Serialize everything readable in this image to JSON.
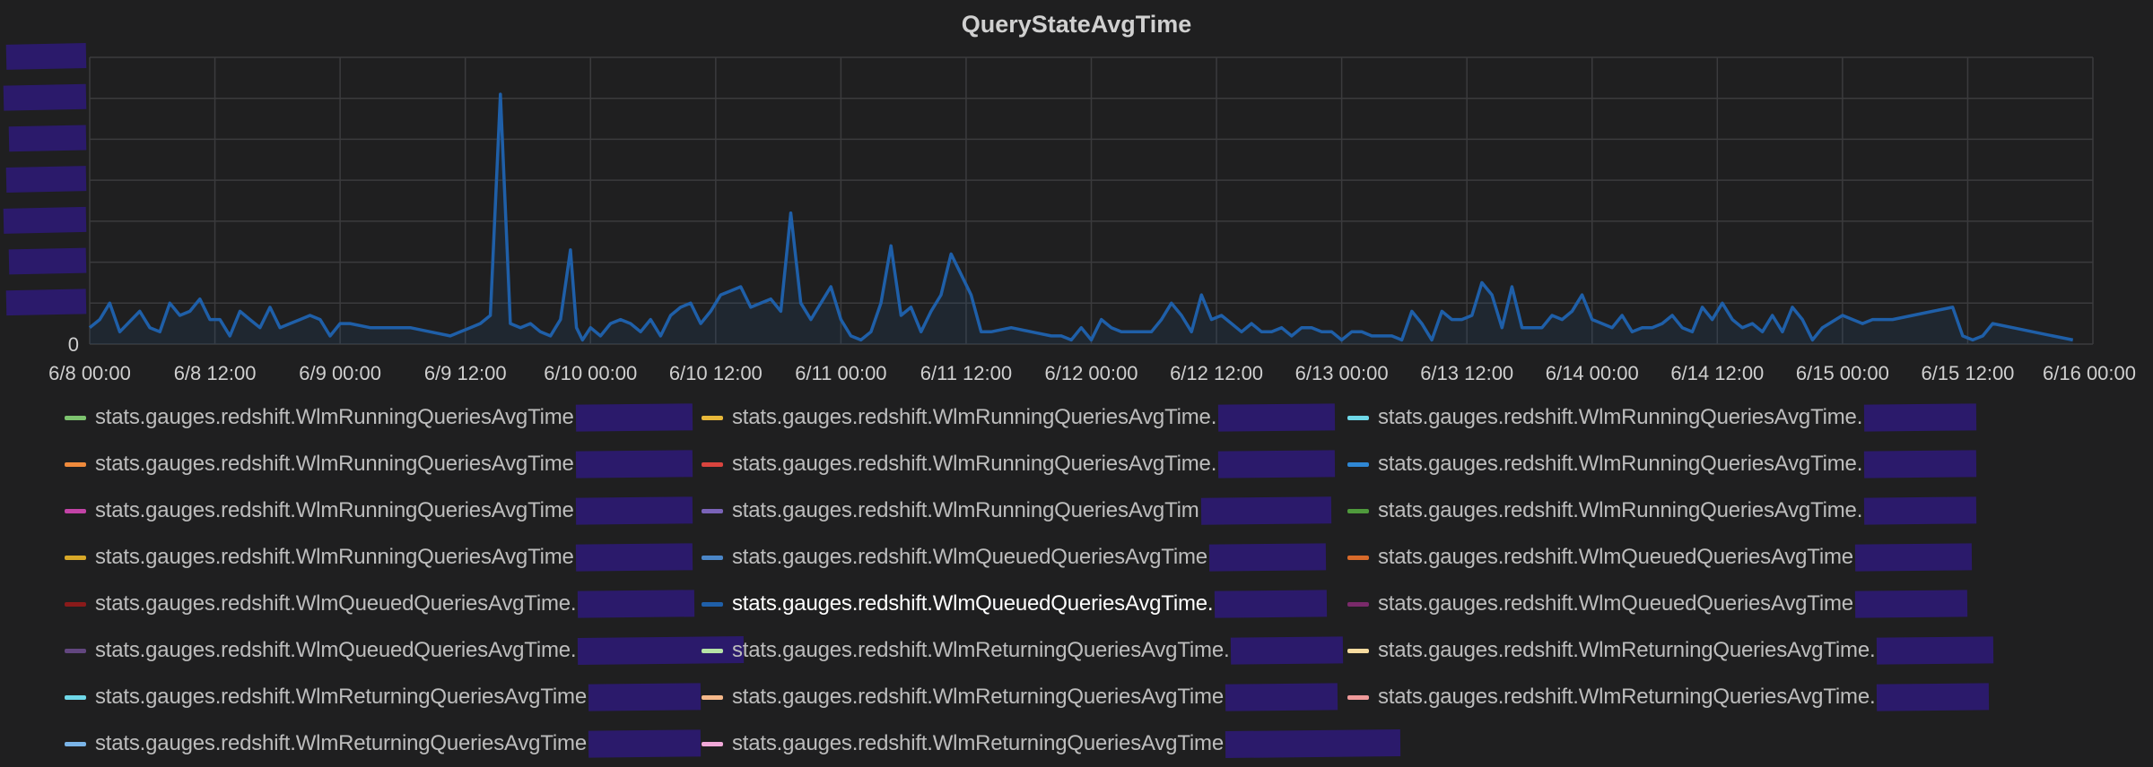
{
  "panel": {
    "title": "QueryStateAvgTime"
  },
  "chart_data": {
    "type": "line",
    "title": "QueryStateAvgTime",
    "x_start": "6/8 00:00",
    "x_end": "6/16 00:00",
    "x_tick_labels": [
      "6/8 00:00",
      "6/8 12:00",
      "6/9 00:00",
      "6/9 12:00",
      "6/10 00:00",
      "6/10 12:00",
      "6/11 00:00",
      "6/11 12:00",
      "6/12 00:00",
      "6/12 12:00",
      "6/13 00:00",
      "6/13 12:00",
      "6/14 00:00",
      "6/14 12:00",
      "6/15 00:00",
      "6/15 12:00",
      "6/16 00:00"
    ],
    "y_tick_labels": [
      "0"
    ],
    "y_note": "y-axis tick values other than 0 are redacted in the image; values below are relative to the top gridline (7 divisions)",
    "ylim": [
      0,
      7
    ],
    "grid": true,
    "series": [
      {
        "name": "stats.gauges.redshift.WlmQueuedQueriesAvgTime.",
        "color": "#1f5fa8",
        "points": [
          [
            0.0,
            0.4
          ],
          [
            0.5,
            0.6
          ],
          [
            1.0,
            1.0
          ],
          [
            1.5,
            0.3
          ],
          [
            2.5,
            0.8
          ],
          [
            3.0,
            0.4
          ],
          [
            3.5,
            0.3
          ],
          [
            4.0,
            1.0
          ],
          [
            4.5,
            0.7
          ],
          [
            5.0,
            0.8
          ],
          [
            5.5,
            1.1
          ],
          [
            6.0,
            0.6
          ],
          [
            6.5,
            0.6
          ],
          [
            7.0,
            0.2
          ],
          [
            7.5,
            0.8
          ],
          [
            8.0,
            0.6
          ],
          [
            8.5,
            0.4
          ],
          [
            9.0,
            0.9
          ],
          [
            9.5,
            0.4
          ],
          [
            10.0,
            0.5
          ],
          [
            10.5,
            0.6
          ],
          [
            11.0,
            0.7
          ],
          [
            11.5,
            0.6
          ],
          [
            12.0,
            0.2
          ],
          [
            12.5,
            0.5
          ],
          [
            13.0,
            0.5
          ],
          [
            14.0,
            0.4
          ],
          [
            15.0,
            0.4
          ],
          [
            16.0,
            0.4
          ],
          [
            17.0,
            0.3
          ],
          [
            18.0,
            0.2
          ],
          [
            19.0,
            0.4
          ],
          [
            19.5,
            0.5
          ],
          [
            20.0,
            0.7
          ],
          [
            20.5,
            6.1
          ],
          [
            21.0,
            0.5
          ],
          [
            21.5,
            0.4
          ],
          [
            22.0,
            0.5
          ],
          [
            22.5,
            0.3
          ],
          [
            23.0,
            0.2
          ],
          [
            23.5,
            0.6
          ],
          [
            24.0,
            2.3
          ],
          [
            24.3,
            0.4
          ],
          [
            24.6,
            0.1
          ],
          [
            25.0,
            0.4
          ],
          [
            25.5,
            0.2
          ],
          [
            26.0,
            0.5
          ],
          [
            26.5,
            0.6
          ],
          [
            27.0,
            0.5
          ],
          [
            27.5,
            0.3
          ],
          [
            28.0,
            0.6
          ],
          [
            28.5,
            0.2
          ],
          [
            29.0,
            0.7
          ],
          [
            29.5,
            0.9
          ],
          [
            30.0,
            1.0
          ],
          [
            30.5,
            0.5
          ],
          [
            31.0,
            0.8
          ],
          [
            31.5,
            1.2
          ],
          [
            32.0,
            1.3
          ],
          [
            32.5,
            1.4
          ],
          [
            33.0,
            0.9
          ],
          [
            33.5,
            1.0
          ],
          [
            34.0,
            1.1
          ],
          [
            34.5,
            0.8
          ],
          [
            35.0,
            3.2
          ],
          [
            35.5,
            1.0
          ],
          [
            36.0,
            0.6
          ],
          [
            36.5,
            1.0
          ],
          [
            37.0,
            1.4
          ],
          [
            37.5,
            0.6
          ],
          [
            38.0,
            0.2
          ],
          [
            38.5,
            0.1
          ],
          [
            39.0,
            0.3
          ],
          [
            39.5,
            1.0
          ],
          [
            40.0,
            2.4
          ],
          [
            40.5,
            0.7
          ],
          [
            41.0,
            0.9
          ],
          [
            41.5,
            0.3
          ],
          [
            42.0,
            0.8
          ],
          [
            42.5,
            1.2
          ],
          [
            43.0,
            2.2
          ],
          [
            43.5,
            1.7
          ],
          [
            44.0,
            1.2
          ],
          [
            44.5,
            0.3
          ],
          [
            45.0,
            0.3
          ],
          [
            46.0,
            0.4
          ],
          [
            47.0,
            0.3
          ],
          [
            48.0,
            0.2
          ],
          [
            48.5,
            0.2
          ],
          [
            49.0,
            0.1
          ],
          [
            49.5,
            0.4
          ],
          [
            50.0,
            0.1
          ],
          [
            50.5,
            0.6
          ],
          [
            51.0,
            0.4
          ],
          [
            51.5,
            0.3
          ],
          [
            52.0,
            0.3
          ],
          [
            53.0,
            0.3
          ],
          [
            53.5,
            0.6
          ],
          [
            54.0,
            1.0
          ],
          [
            54.5,
            0.7
          ],
          [
            55.0,
            0.3
          ],
          [
            55.5,
            1.2
          ],
          [
            56.0,
            0.6
          ],
          [
            56.5,
            0.7
          ],
          [
            57.0,
            0.5
          ],
          [
            57.5,
            0.3
          ],
          [
            58.0,
            0.5
          ],
          [
            58.5,
            0.3
          ],
          [
            59.0,
            0.3
          ],
          [
            59.5,
            0.4
          ],
          [
            60.0,
            0.2
          ],
          [
            60.5,
            0.4
          ],
          [
            61.0,
            0.4
          ],
          [
            61.5,
            0.3
          ],
          [
            62.0,
            0.3
          ],
          [
            62.5,
            0.1
          ],
          [
            63.0,
            0.3
          ],
          [
            63.5,
            0.3
          ],
          [
            64.0,
            0.2
          ],
          [
            65.0,
            0.2
          ],
          [
            65.5,
            0.1
          ],
          [
            66.0,
            0.8
          ],
          [
            66.5,
            0.5
          ],
          [
            67.0,
            0.1
          ],
          [
            67.5,
            0.8
          ],
          [
            68.0,
            0.6
          ],
          [
            68.5,
            0.6
          ],
          [
            69.0,
            0.7
          ],
          [
            69.5,
            1.5
          ],
          [
            70.0,
            1.2
          ],
          [
            70.5,
            0.4
          ],
          [
            71.0,
            1.4
          ],
          [
            71.5,
            0.4
          ],
          [
            72.0,
            0.4
          ],
          [
            72.5,
            0.4
          ],
          [
            73.0,
            0.7
          ],
          [
            73.5,
            0.6
          ],
          [
            74.0,
            0.8
          ],
          [
            74.5,
            1.2
          ],
          [
            75.0,
            0.6
          ],
          [
            75.5,
            0.5
          ],
          [
            76.0,
            0.4
          ],
          [
            76.5,
            0.7
          ],
          [
            77.0,
            0.3
          ],
          [
            77.5,
            0.4
          ],
          [
            78.0,
            0.4
          ],
          [
            78.5,
            0.5
          ],
          [
            79.0,
            0.7
          ],
          [
            79.5,
            0.4
          ],
          [
            80.0,
            0.3
          ],
          [
            80.5,
            0.9
          ],
          [
            81.0,
            0.6
          ],
          [
            81.5,
            1.0
          ],
          [
            82.0,
            0.6
          ],
          [
            82.5,
            0.4
          ],
          [
            83.0,
            0.5
          ],
          [
            83.5,
            0.3
          ],
          [
            84.0,
            0.7
          ],
          [
            84.5,
            0.3
          ],
          [
            85.0,
            0.9
          ],
          [
            85.5,
            0.6
          ],
          [
            86.0,
            0.1
          ],
          [
            86.5,
            0.4
          ],
          [
            87.5,
            0.7
          ],
          [
            88.5,
            0.5
          ],
          [
            89.0,
            0.6
          ],
          [
            90.0,
            0.6
          ],
          [
            91.0,
            0.7
          ],
          [
            92.0,
            0.8
          ],
          [
            93.0,
            0.9
          ],
          [
            93.5,
            0.2
          ],
          [
            94.0,
            0.1
          ],
          [
            94.5,
            0.2
          ],
          [
            95.0,
            0.5
          ],
          [
            96.0,
            0.4
          ],
          [
            97.0,
            0.3
          ],
          [
            98.0,
            0.2
          ],
          [
            99.0,
            0.1
          ]
        ]
      }
    ]
  },
  "legend": {
    "rows": [
      [
        {
          "label": "stats.gauges.redshift.WlmRunningQueriesAvgTime",
          "color": "#7dc36f",
          "redact_w": 130
        },
        {
          "label": "stats.gauges.redshift.WlmRunningQueriesAvgTime.",
          "color": "#e8b83a",
          "redact_w": 130
        },
        {
          "label": "stats.gauges.redshift.WlmRunningQueriesAvgTime.",
          "color": "#6fd8e8",
          "redact_w": 125
        }
      ],
      [
        {
          "label": "stats.gauges.redshift.WlmRunningQueriesAvgTime",
          "color": "#ef8a3c",
          "redact_w": 130
        },
        {
          "label": "stats.gauges.redshift.WlmRunningQueriesAvgTime.",
          "color": "#d9443e",
          "redact_w": 130
        },
        {
          "label": "stats.gauges.redshift.WlmRunningQueriesAvgTime.",
          "color": "#2f87d4",
          "redact_w": 125
        }
      ],
      [
        {
          "label": "stats.gauges.redshift.WlmRunningQueriesAvgTime",
          "color": "#c243a6",
          "redact_w": 130
        },
        {
          "label": "stats.gauges.redshift.WlmRunningQueriesAvgTim",
          "color": "#7a63b8",
          "redact_w": 145
        },
        {
          "label": "stats.gauges.redshift.WlmRunningQueriesAvgTime.",
          "color": "#4f9a3c",
          "redact_w": 125
        }
      ],
      [
        {
          "label": "stats.gauges.redshift.WlmRunningQueriesAvgTime",
          "color": "#d8a828",
          "redact_w": 130
        },
        {
          "label": "stats.gauges.redshift.WlmQueuedQueriesAvgTime",
          "color": "#4b86c7",
          "redact_w": 130
        },
        {
          "label": "stats.gauges.redshift.WlmQueuedQueriesAvgTime",
          "color": "#d86a2a",
          "redact_w": 130
        }
      ],
      [
        {
          "label": "stats.gauges.redshift.WlmQueuedQueriesAvgTime.",
          "color": "#8a1a1a",
          "redact_w": 130
        },
        {
          "label": "stats.gauges.redshift.WlmQueuedQueriesAvgTime.",
          "color": "#1f5fa8",
          "redact_w": 125,
          "active": true
        },
        {
          "label": "stats.gauges.redshift.WlmQueuedQueriesAvgTime",
          "color": "#7a2a6a",
          "redact_w": 125
        }
      ],
      [
        {
          "label": "stats.gauges.redshift.WlmQueuedQueriesAvgTime.",
          "color": "#62467f",
          "redact_w": 185
        },
        {
          "label": "stats.gauges.redshift.WlmReturningQueriesAvgTime.",
          "color": "#b6e3a6",
          "redact_w": 125
        },
        {
          "label": "stats.gauges.redshift.WlmReturningQueriesAvgTime.",
          "color": "#f8dca0",
          "redact_w": 130
        }
      ],
      [
        {
          "label": "stats.gauges.redshift.WlmReturningQueriesAvgTime",
          "color": "#6fd8e8",
          "redact_w": 125
        },
        {
          "label": "stats.gauges.redshift.WlmReturningQueriesAvgTime",
          "color": "#f5b88a",
          "redact_w": 125
        },
        {
          "label": "stats.gauges.redshift.WlmReturningQueriesAvgTime.",
          "color": "#ef9a9a",
          "redact_w": 125
        }
      ],
      [
        {
          "label": "stats.gauges.redshift.WlmReturningQueriesAvgTime",
          "color": "#7ab4e8",
          "redact_w": 125
        },
        {
          "label": "stats.gauges.redshift.WlmReturningQueriesAvgTime",
          "color": "#f0a8d8",
          "redact_w": 195
        }
      ]
    ]
  }
}
